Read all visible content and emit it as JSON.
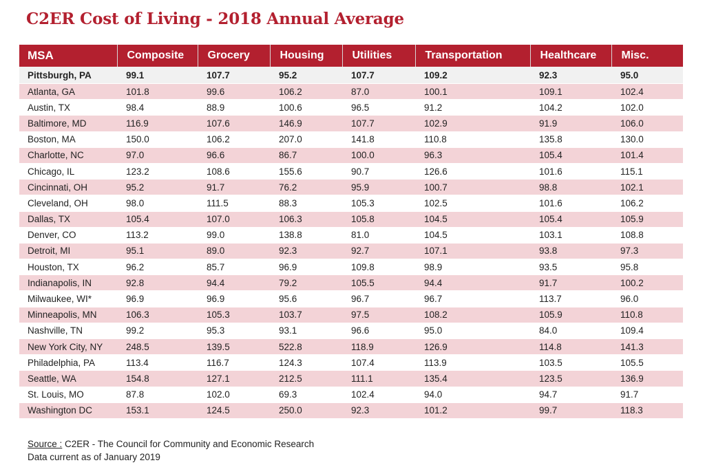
{
  "title": "C2ER Cost of Living - 2018 Annual Average",
  "colors": {
    "header_bg": "#b3202f",
    "title_color": "#b3202f",
    "row_shade": "#f3d3d7",
    "row_plain": "#ffffff"
  },
  "chart_data": {
    "type": "table",
    "title": "C2ER Cost of Living - 2018 Annual Average",
    "columns": [
      "MSA",
      "Composite",
      "Grocery",
      "Housing",
      "Utilities",
      "Transportation",
      "Healthcare",
      "Misc."
    ],
    "rows": [
      [
        "Pittsburgh, PA",
        "99.1",
        "107.7",
        "95.2",
        "107.7",
        "109.2",
        "92.3",
        "95.0"
      ],
      [
        "Atlanta, GA",
        "101.8",
        "99.6",
        "106.2",
        "87.0",
        "100.1",
        "109.1",
        "102.4"
      ],
      [
        "Austin, TX",
        "98.4",
        "88.9",
        "100.6",
        "96.5",
        "91.2",
        "104.2",
        "102.0"
      ],
      [
        "Baltimore, MD",
        "116.9",
        "107.6",
        "146.9",
        "107.7",
        "102.9",
        "91.9",
        "106.0"
      ],
      [
        "Boston, MA",
        "150.0",
        "106.2",
        "207.0",
        "141.8",
        "110.8",
        "135.8",
        "130.0"
      ],
      [
        "Charlotte, NC",
        "97.0",
        "96.6",
        "86.7",
        "100.0",
        "96.3",
        "105.4",
        "101.4"
      ],
      [
        "Chicago, IL",
        "123.2",
        "108.6",
        "155.6",
        "90.7",
        "126.6",
        "101.6",
        "115.1"
      ],
      [
        "Cincinnati, OH",
        "95.2",
        "91.7",
        "76.2",
        "95.9",
        "100.7",
        "98.8",
        "102.1"
      ],
      [
        "Cleveland, OH",
        "98.0",
        "111.5",
        "88.3",
        "105.3",
        "102.5",
        "101.6",
        "106.2"
      ],
      [
        "Dallas, TX",
        "105.4",
        "107.0",
        "106.3",
        "105.8",
        "104.5",
        "105.4",
        "105.9"
      ],
      [
        "Denver, CO",
        "113.2",
        "99.0",
        "138.8",
        "81.0",
        "104.5",
        "103.1",
        "108.8"
      ],
      [
        "Detroit, MI",
        "95.1",
        "89.0",
        "92.3",
        "92.7",
        "107.1",
        "93.8",
        "97.3"
      ],
      [
        "Houston, TX",
        "96.2",
        "85.7",
        "96.9",
        "109.8",
        "98.9",
        "93.5",
        "95.8"
      ],
      [
        "Indianapolis, IN",
        "92.8",
        "94.4",
        "79.2",
        "105.5",
        "94.4",
        "91.7",
        "100.2"
      ],
      [
        "Milwaukee, WI*",
        "96.9",
        "96.9",
        "95.6",
        "96.7",
        "96.7",
        "113.7",
        "96.0"
      ],
      [
        "Minneapolis, MN",
        "106.3",
        "105.3",
        "103.7",
        "97.5",
        "108.2",
        "105.9",
        "110.8"
      ],
      [
        "Nashville, TN",
        "99.2",
        "95.3",
        "93.1",
        "96.6",
        "95.0",
        "84.0",
        "109.4"
      ],
      [
        "New York City, NY",
        "248.5",
        "139.5",
        "522.8",
        "118.9",
        "126.9",
        "114.8",
        "141.3"
      ],
      [
        "Philadelphia, PA",
        "113.4",
        "116.7",
        "124.3",
        "107.4",
        "113.9",
        "103.5",
        "105.5"
      ],
      [
        "Seattle, WA",
        "154.8",
        "127.1",
        "212.5",
        "111.1",
        "135.4",
        "123.5",
        "136.9"
      ],
      [
        "St. Louis, MO",
        "87.8",
        "102.0",
        "69.3",
        "102.4",
        "94.0",
        "94.7",
        "91.7"
      ],
      [
        "Washington DC",
        "153.1",
        "124.5",
        "250.0",
        "92.3",
        "101.2",
        "99.7",
        "118.3"
      ]
    ]
  },
  "footer": {
    "source_label": "Source :",
    "source_text": " C2ER - The Council for Community and Economic Research",
    "note": "Data current as of January 2019"
  }
}
